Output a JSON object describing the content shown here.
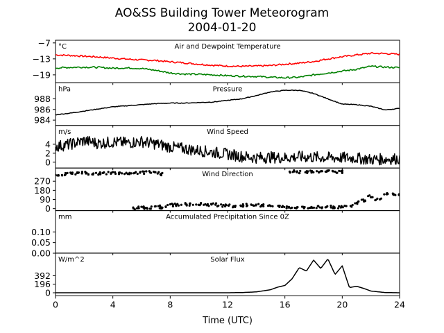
{
  "chart_data": {
    "type": "line",
    "title": "AO&SS Building Tower Meteorogram",
    "subtitle": "2004-01-20",
    "xlabel": "Time (UTC)",
    "xlim": [
      0,
      24
    ],
    "xticks": [
      "0",
      "4",
      "8",
      "12",
      "16",
      "20",
      "24"
    ],
    "xtick_values": [
      0,
      4,
      8,
      12,
      16,
      20,
      24
    ],
    "panels": [
      {
        "label": "Air and Dewpoint Temperature",
        "unit": "°C",
        "ylim": [
          -22,
          -6
        ],
        "yticks": [
          -7,
          -13,
          -19
        ],
        "ytick_labels": [
          "−7",
          "−13",
          "−19"
        ],
        "series": [
          {
            "color": "#ff0000",
            "style": "line",
            "x": [
              0,
              1,
              2,
              3,
              4,
              5,
              6,
              7,
              8,
              9,
              10,
              11,
              12,
              13,
              14,
              15,
              16,
              17,
              18,
              19,
              20,
              21,
              22,
              23,
              24
            ],
            "y": [
              -11.5,
              -11.7,
              -12.0,
              -12.3,
              -12.7,
              -13.1,
              -13.4,
              -13.6,
              -14.1,
              -14.5,
              -15.0,
              -15.4,
              -15.7,
              -15.8,
              -15.7,
              -15.5,
              -15.0,
              -14.6,
              -14.0,
              -13.0,
              -12.2,
              -11.5,
              -10.9,
              -11.0,
              -11.3
            ]
          },
          {
            "color": "#008000",
            "style": "line",
            "x": [
              0,
              1,
              2,
              3,
              4,
              5,
              6,
              7,
              8,
              9,
              10,
              11,
              12,
              13,
              14,
              15,
              16,
              17,
              18,
              19,
              20,
              21,
              22,
              23,
              24
            ],
            "y": [
              -16.4,
              -16.2,
              -16.1,
              -16.2,
              -16.5,
              -16.4,
              -16.6,
              -17.3,
              -18.3,
              -18.7,
              -18.8,
              -19.0,
              -19.3,
              -19.5,
              -19.6,
              -19.9,
              -20.1,
              -19.9,
              -19.0,
              -18.3,
              -17.6,
              -16.9,
              -15.8,
              -16.1,
              -16.3
            ]
          }
        ]
      },
      {
        "label": "Pressure",
        "unit": "hPa",
        "ylim": [
          983,
          991
        ],
        "yticks": [
          984,
          986,
          988
        ],
        "ytick_labels": [
          "984",
          "986",
          "988"
        ],
        "series": [
          {
            "color": "#000000",
            "style": "line",
            "x": [
              0,
              1,
              2,
              3,
              4,
              5,
              6,
              7,
              8,
              9,
              10,
              11,
              12,
              13,
              14,
              15,
              16,
              17,
              18,
              19,
              20,
              21,
              22,
              23,
              24
            ],
            "y": [
              985.0,
              985.3,
              985.7,
              986.1,
              986.5,
              986.7,
              986.9,
              987.1,
              987.2,
              987.2,
              987.3,
              987.4,
              987.7,
              988.0,
              988.6,
              989.3,
              989.6,
              989.6,
              989.0,
              988.0,
              987.0,
              986.9,
              986.6,
              985.9,
              986.2
            ]
          }
        ]
      },
      {
        "label": "Wind Speed",
        "unit": "m/s",
        "ylim": [
          -1.3,
          8.2
        ],
        "yticks": [
          0,
          2,
          4
        ],
        "ytick_labels": [
          "0",
          "2",
          "4"
        ],
        "series": [
          {
            "color": "#000000",
            "style": "jagged",
            "x": [
              0,
              1,
              2,
              3,
              4,
              5,
              6,
              7,
              8,
              9,
              10,
              11,
              12,
              13,
              14,
              15,
              16,
              17,
              18,
              19,
              20,
              21,
              22,
              23,
              24
            ],
            "y": [
              3.5,
              4.0,
              4.8,
              4.2,
              4.5,
              4.3,
              4.6,
              4.1,
              3.4,
              3.0,
              2.6,
              2.2,
              1.8,
              1.3,
              1.0,
              1.1,
              1.0,
              1.2,
              1.1,
              1.0,
              1.0,
              0.9,
              0.6,
              0.7,
              0.8
            ]
          }
        ]
      },
      {
        "label": "Wind Direction",
        "unit": "",
        "ylim": [
          -20,
          400
        ],
        "yticks": [
          0,
          90,
          180,
          270
        ],
        "ytick_labels": [
          "0",
          "90",
          "180",
          "270"
        ],
        "series": [
          {
            "color": "#000000",
            "style": "dots",
            "x": [
              0,
              0.5,
              1,
              1.5,
              2,
              2.5,
              3,
              3.5,
              4,
              4.5,
              5,
              5.5,
              6,
              6.5,
              7,
              7.5,
              8,
              8.5,
              9,
              9.5,
              10,
              10.5,
              11,
              11.5,
              12,
              12.5,
              13,
              13.5,
              14,
              14.5,
              15,
              15.5,
              16,
              16.5,
              17,
              17.5,
              18,
              18.5,
              19,
              19.5,
              20,
              20.5,
              21,
              21.5,
              22,
              22.5,
              23,
              23.5,
              24
            ],
            "y": [
              330,
              338,
              345,
              350,
              355,
              340,
              345,
              350,
              355,
              348,
              352,
              350,
              355,
              358,
              352,
              340,
              35,
              38,
              42,
              40,
              45,
              38,
              42,
              30,
              35,
              25,
              30,
              35,
              40,
              30,
              25,
              20,
              15,
              10,
              15,
              12,
              10,
              15,
              20,
              15,
              20,
              30,
              60,
              80,
              120,
              90,
              140,
              140,
              140
            ]
          },
          {
            "color": "#000000",
            "style": "dots",
            "x": [
              5.6,
              6.0,
              6.4,
              6.8,
              7.2,
              7.5,
              16.5,
              17.0,
              17.5,
              18.0,
              18.5,
              19.0,
              19.5,
              20.0
            ],
            "y": [
              5,
              8,
              6,
              10,
              12,
              20,
              365,
              360,
              362,
              368,
              360,
              365,
              360,
              362
            ]
          }
        ]
      },
      {
        "label": "Accumulated Precipitation Since 0Z",
        "unit": "mm",
        "ylim": [
          0,
          0.2
        ],
        "yticks": [
          0,
          0.05,
          0.1
        ],
        "ytick_labels": [
          "0.00",
          "0.05",
          "0.10"
        ],
        "series": [
          {
            "color": "#000000",
            "style": "line",
            "x": [
              0,
              24
            ],
            "y": [
              0,
              0
            ]
          }
        ]
      },
      {
        "label": "Solar Flux",
        "unit": "W/m^2",
        "ylim": [
          -70,
          910
        ],
        "yticks": [
          0,
          196,
          392
        ],
        "ytick_labels": [
          "0",
          "196",
          "392"
        ],
        "series": [
          {
            "color": "#000000",
            "style": "line",
            "x": [
              0,
              12,
              13,
              14,
              15,
              15.5,
              16,
              16.5,
              17,
              17.5,
              18,
              18.5,
              19,
              19.5,
              20,
              20.5,
              21,
              21.5,
              22,
              23,
              24
            ],
            "y": [
              0,
              0,
              5,
              20,
              70,
              130,
              170,
              320,
              580,
              500,
              750,
              560,
              780,
              420,
              620,
              120,
              150,
              100,
              40,
              5,
              0
            ]
          }
        ]
      }
    ]
  }
}
